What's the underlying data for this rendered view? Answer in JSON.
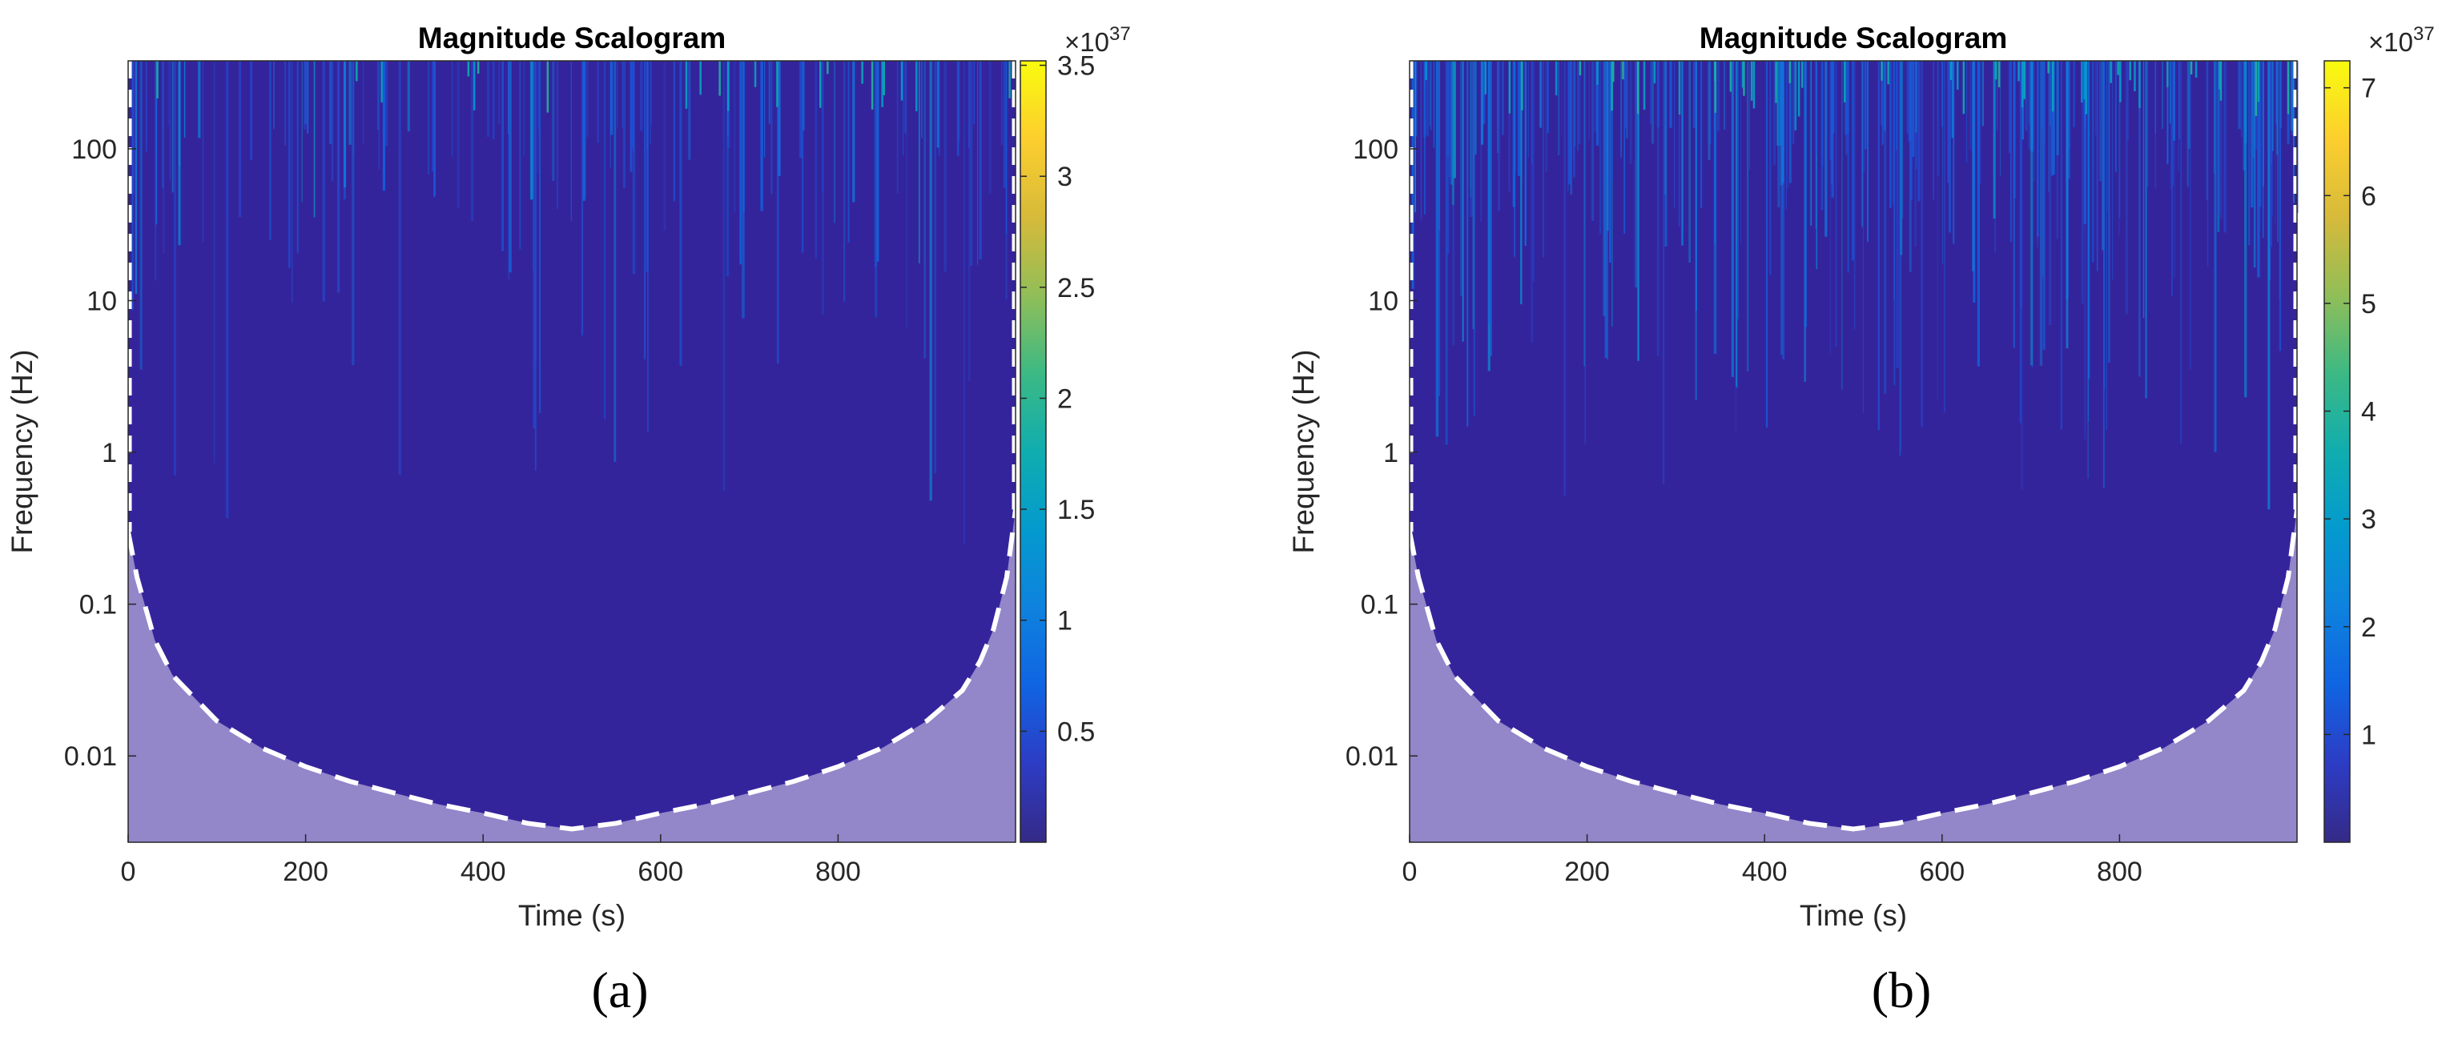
{
  "chart_data": [
    {
      "type": "heatmap",
      "panel_label": "(a)",
      "title": "Magnitude Scalogram",
      "xlabel": "Time (s)",
      "ylabel": "Frequency (Hz)",
      "xlim": [
        0,
        1000
      ],
      "ylim": [
        0.0027,
        380
      ],
      "yscale": "log",
      "x_ticks": [
        0,
        200,
        400,
        600,
        800
      ],
      "y_ticks": [
        {
          "value": 0.01,
          "label": "0.01"
        },
        {
          "value": 0.1,
          "label": "0.1"
        },
        {
          "value": 1,
          "label": "1"
        },
        {
          "value": 10,
          "label": "10"
        },
        {
          "value": 100,
          "label": "100"
        }
      ],
      "colorbar": {
        "exponent_label": "×10",
        "exponent": "37",
        "range": [
          0,
          3.52
        ],
        "ticks": [
          {
            "value": 0.5,
            "label": "0.5"
          },
          {
            "value": 1,
            "label": "1"
          },
          {
            "value": 1.5,
            "label": "1.5"
          },
          {
            "value": 2,
            "label": "2"
          },
          {
            "value": 2.5,
            "label": "2.5"
          },
          {
            "value": 3,
            "label": "3"
          },
          {
            "value": 3.5,
            "label": "3.5"
          }
        ]
      },
      "background_level": 0.45,
      "cone_of_influence": {
        "t": [
          0,
          10,
          30,
          50,
          100,
          150,
          200,
          250,
          300,
          350,
          400,
          450,
          500,
          550,
          600,
          650,
          700,
          750,
          800,
          850,
          900,
          940,
          960,
          975,
          990,
          1000
        ],
        "f": [
          0.3,
          0.15,
          0.058,
          0.034,
          0.017,
          0.0113,
          0.0085,
          0.0068,
          0.0057,
          0.0048,
          0.0042,
          0.0036,
          0.0033,
          0.0036,
          0.0042,
          0.0048,
          0.0057,
          0.0068,
          0.0085,
          0.0113,
          0.017,
          0.027,
          0.042,
          0.068,
          0.15,
          0.42
        ]
      }
    },
    {
      "type": "heatmap",
      "panel_label": "(b)",
      "title": "Magnitude Scalogram",
      "xlabel": "Time (s)",
      "ylabel": "Frequency (Hz)",
      "xlim": [
        0,
        1000
      ],
      "ylim": [
        0.0027,
        380
      ],
      "yscale": "log",
      "x_ticks": [
        0,
        200,
        400,
        600,
        800
      ],
      "y_ticks": [
        {
          "value": 0.01,
          "label": "0.01"
        },
        {
          "value": 0.1,
          "label": "0.1"
        },
        {
          "value": 1,
          "label": "1"
        },
        {
          "value": 10,
          "label": "10"
        },
        {
          "value": 100,
          "label": "100"
        }
      ],
      "colorbar": {
        "exponent_label": "×10",
        "exponent": "37",
        "range": [
          0,
          7.25
        ],
        "ticks": [
          {
            "value": 1,
            "label": "1"
          },
          {
            "value": 2,
            "label": "2"
          },
          {
            "value": 3,
            "label": "3"
          },
          {
            "value": 4,
            "label": "4"
          },
          {
            "value": 5,
            "label": "5"
          },
          {
            "value": 6,
            "label": "6"
          },
          {
            "value": 7,
            "label": "7"
          }
        ]
      },
      "background_level": 0.6,
      "cone_of_influence": {
        "t": [
          0,
          10,
          30,
          50,
          100,
          150,
          200,
          250,
          300,
          350,
          400,
          450,
          500,
          550,
          600,
          650,
          700,
          750,
          800,
          850,
          900,
          940,
          960,
          975,
          990,
          1000
        ],
        "f": [
          0.3,
          0.15,
          0.058,
          0.034,
          0.017,
          0.0113,
          0.0085,
          0.0068,
          0.0057,
          0.0048,
          0.0042,
          0.0036,
          0.0033,
          0.0036,
          0.0042,
          0.0048,
          0.0057,
          0.0068,
          0.0085,
          0.0113,
          0.017,
          0.027,
          0.042,
          0.068,
          0.15,
          0.42
        ]
      }
    }
  ]
}
